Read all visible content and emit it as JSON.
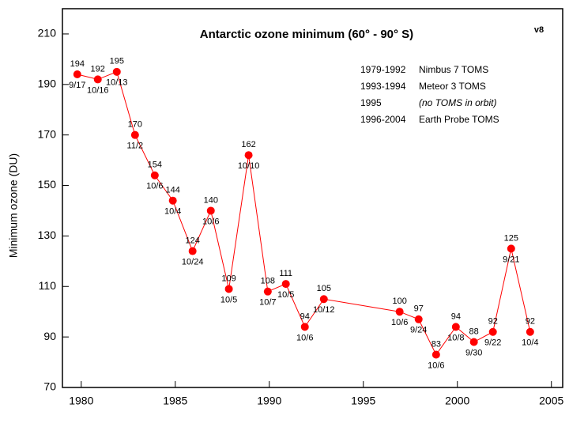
{
  "chart_data": {
    "type": "line",
    "title": "Antarctic ozone minimum (60° - 90° S)",
    "version": "v8",
    "y_label": "Minimum ozone (DU)",
    "x": [
      1979.79,
      1980.88,
      1981.89,
      1982.86,
      1983.91,
      1984.87,
      1985.92,
      1986.89,
      1987.85,
      1988.9,
      1989.92,
      1990.88,
      1991.89,
      1992.9,
      1996.93,
      1997.94,
      1998.87,
      1999.92,
      2000.88,
      2001.89,
      2002.86,
      2003.87
    ],
    "series": [
      {
        "color": "#ff0000",
        "values": [
          194,
          192,
          195,
          170,
          154,
          144,
          124,
          140,
          109,
          162,
          108,
          111,
          94,
          105,
          100,
          97,
          83,
          94,
          88,
          92,
          125,
          92
        ],
        "dates": [
          "9/17",
          "10/16",
          "10/13",
          "11/2",
          "10/6",
          "10/4",
          "10/24",
          "10/6",
          "10/5",
          "10/10",
          "10/7",
          "10/5",
          "10/6",
          "10/12",
          "10/6",
          "9/24",
          "10/6",
          "10/8",
          "9/30",
          "9/22",
          "9/21",
          "10/4"
        ]
      }
    ],
    "xlim": [
      1979,
      2005.6
    ],
    "ylim": [
      70,
      220
    ],
    "xticks": [
      1980,
      1985,
      1990,
      1995,
      2000,
      2005
    ],
    "yticks": [
      70,
      90,
      110,
      130,
      150,
      170,
      190,
      210
    ],
    "annotations": [
      {
        "period": "1979-1992",
        "text": "Nimbus 7 TOMS"
      },
      {
        "period": "1993-1994",
        "text": "Meteor 3 TOMS"
      },
      {
        "period": "1995",
        "text": "(no TOMS in orbit)"
      },
      {
        "period": "1996-2004",
        "text": "Earth Probe TOMS"
      }
    ]
  }
}
